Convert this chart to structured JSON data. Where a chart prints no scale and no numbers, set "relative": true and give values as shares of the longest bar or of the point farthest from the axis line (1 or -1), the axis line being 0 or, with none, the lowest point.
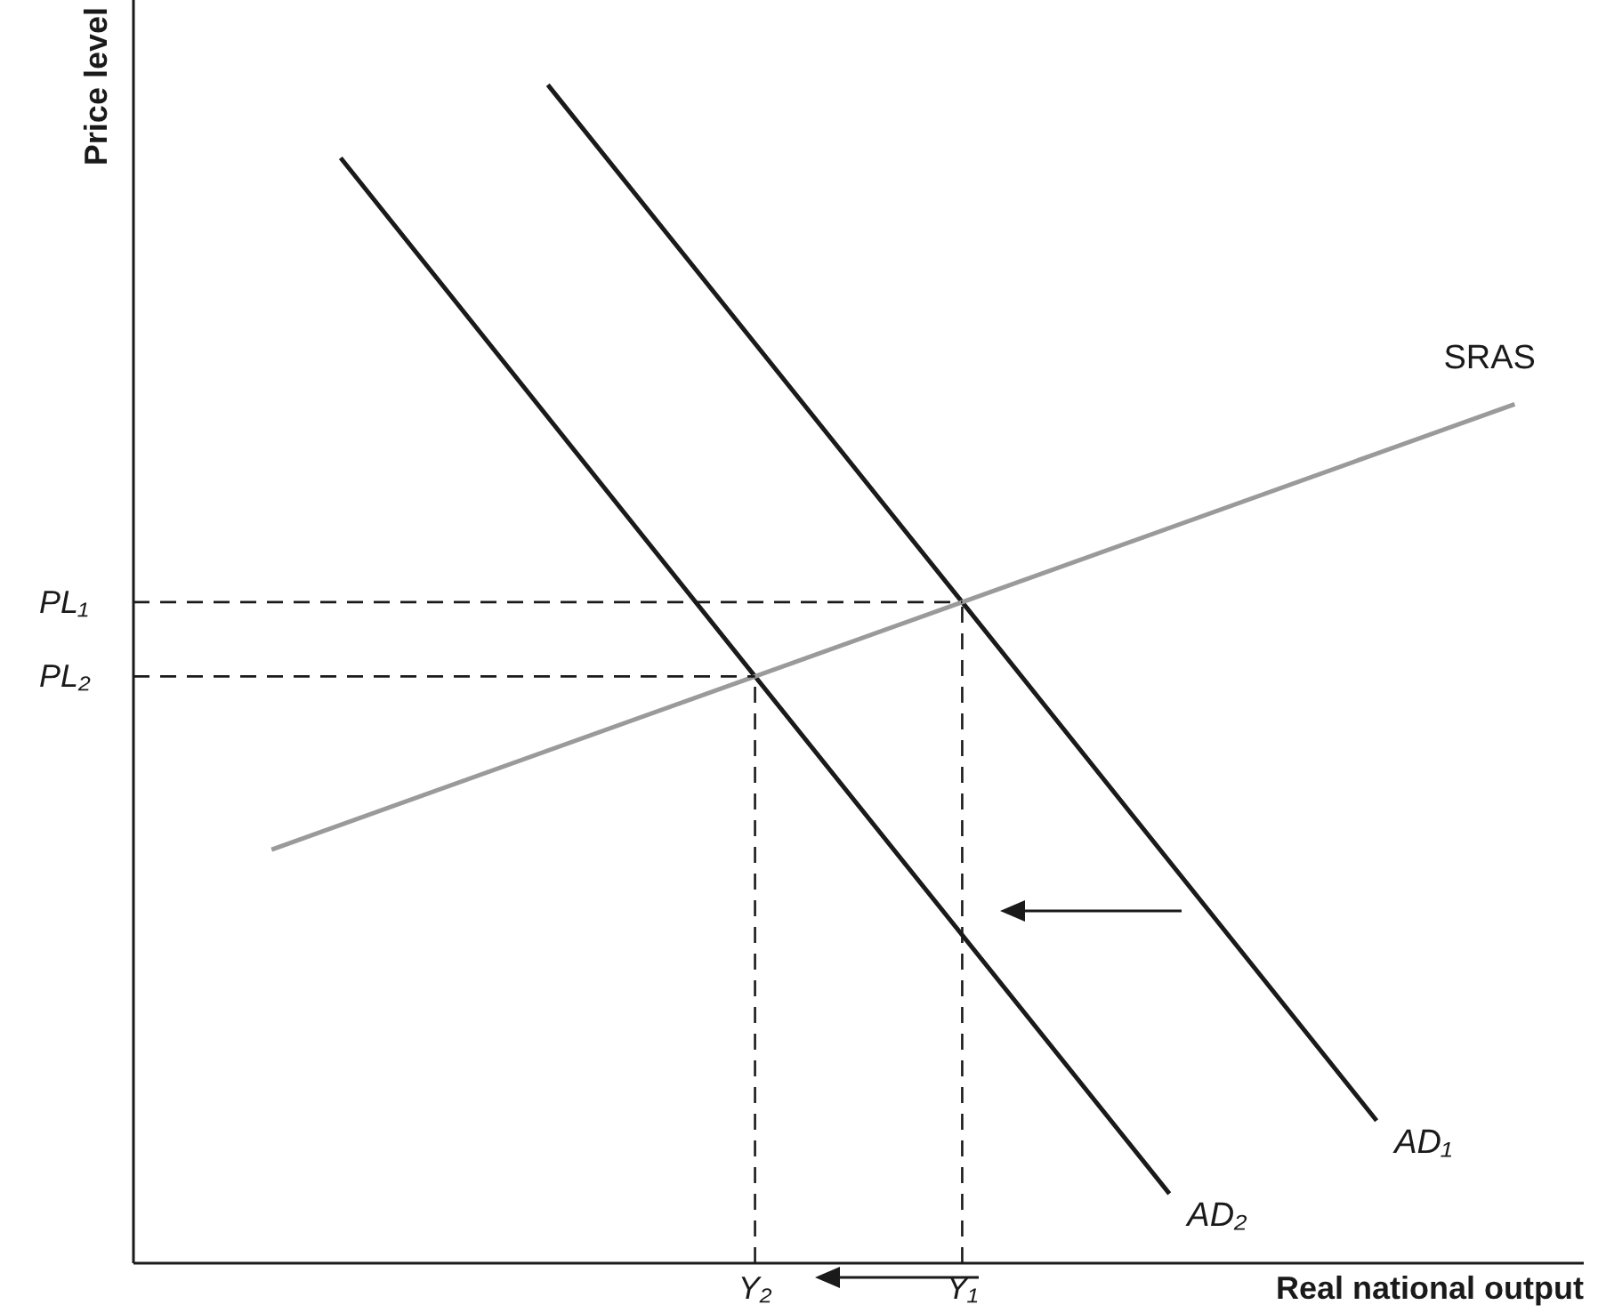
{
  "chart_data": {
    "type": "line",
    "relative": true,
    "xlabel": "Real national output",
    "ylabel": "Price level",
    "categories": [
      null,
      null,
      null,
      null,
      null,
      null,
      null,
      null,
      null,
      "Y₂",
      null,
      null,
      "Y₁",
      null,
      null,
      null,
      null,
      null,
      null,
      null,
      null
    ],
    "marker": "none",
    "line_style": "solid",
    "series": [
      {
        "name": "AD₁",
        "color": "#1a1a1a",
        "values": [
          null,
          null,
          null,
          null,
          null,
          null,
          1,
          null,
          null,
          null,
          null,
          null,
          0.561,
          null,
          null,
          null,
          null,
          null,
          0.121,
          null,
          null
        ]
      },
      {
        "name": "AD₂",
        "color": "#1a1a1a",
        "values": [
          null,
          null,
          null,
          0.938,
          null,
          null,
          null,
          null,
          null,
          0.498,
          null,
          null,
          null,
          null,
          null,
          0.059,
          null,
          null,
          null,
          null,
          null
        ]
      },
      {
        "name": "SRAS",
        "color": "#9a9a9a",
        "values": [
          null,
          null,
          0.351,
          null,
          null,
          null,
          null,
          null,
          null,
          0.498,
          null,
          null,
          0.561,
          null,
          null,
          null,
          null,
          null,
          null,
          null,
          0.729
        ]
      },
      {
        "name": "PL₁",
        "color": "#1a1a1a",
        "line_style": "dashed",
        "values": [
          0.561,
          null,
          null,
          null,
          null,
          null,
          null,
          null,
          null,
          null,
          null,
          null,
          0.561,
          null,
          null,
          null,
          null,
          null,
          null,
          null,
          null
        ]
      },
      {
        "name": "PL₂",
        "color": "#1a1a1a",
        "line_style": "dashed",
        "values": [
          0.498,
          null,
          null,
          null,
          null,
          null,
          null,
          null,
          null,
          0.498,
          null,
          null,
          null,
          null,
          null,
          null,
          null,
          null,
          null,
          null,
          null
        ]
      }
    ],
    "ref_lines": [
      {
        "axis": "x",
        "value": "Y₂",
        "color": "#1a1a1a",
        "line_style": "dashed"
      },
      {
        "axis": "x",
        "value": "Y₁",
        "color": "#1a1a1a",
        "line_style": "dashed"
      }
    ]
  }
}
